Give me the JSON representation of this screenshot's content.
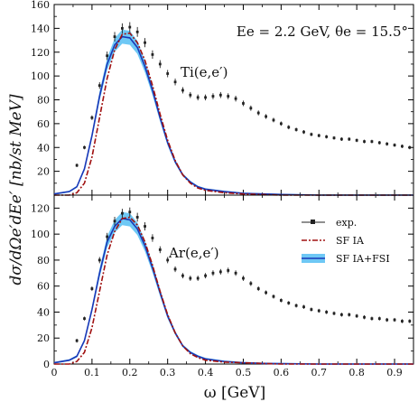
{
  "chart_data": {
    "type": "line",
    "x_label": "ω  [GeV]",
    "y_label": "dσ/dΩe′dEe′  [nb/st MeV]",
    "x_range": [
      0,
      0.95
    ],
    "x_ticks": [
      "0",
      "0.1",
      "0.2",
      "0.3",
      "0.4",
      "0.5",
      "0.6",
      "0.7",
      "0.8",
      "0.9"
    ],
    "kinematics_label": "Ee = 2.2 GeV,  θe = 15.5°",
    "legend": {
      "placement": "right",
      "entries": [
        "exp.",
        "SF IA",
        "SF IA+FSI"
      ]
    },
    "colors": {
      "exp": "#222222",
      "sf_ia": "#a01010",
      "sf_fsi_line": "#1838b8",
      "sf_fsi_band": "#6ec8f5"
    },
    "panels": [
      {
        "label": "Ti(e,e′)",
        "y_range": [
          0,
          160
        ],
        "y_ticks": [
          "0",
          "20",
          "40",
          "60",
          "80",
          "100",
          "120",
          "140",
          "160"
        ],
        "series": [
          {
            "name": "exp.",
            "x": [
              0.06,
              0.08,
              0.1,
              0.12,
              0.14,
              0.16,
              0.18,
              0.2,
              0.22,
              0.24,
              0.26,
              0.28,
              0.3,
              0.32,
              0.34,
              0.36,
              0.38,
              0.4,
              0.42,
              0.44,
              0.46,
              0.48,
              0.5,
              0.52,
              0.54,
              0.56,
              0.58,
              0.6,
              0.62,
              0.64,
              0.66,
              0.68,
              0.7,
              0.72,
              0.74,
              0.76,
              0.78,
              0.8,
              0.82,
              0.84,
              0.86,
              0.88,
              0.9,
              0.92,
              0.94
            ],
            "y": [
              25,
              40,
              65,
              92,
              117,
              133,
              140,
              141,
              137,
              128,
              118,
              110,
              102,
              95,
              88,
              84,
              82,
              82,
              83,
              84,
              83,
              81,
              77,
              73,
              69,
              66,
              63,
              60,
              57,
              55,
              53,
              51,
              50,
              49,
              48,
              47,
              47,
              46,
              45,
              45,
              44,
              43,
              42,
              41,
              40
            ]
          },
          {
            "name": "SF IA",
            "x": [
              0.0,
              0.04,
              0.06,
              0.08,
              0.1,
              0.12,
              0.14,
              0.16,
              0.18,
              0.2,
              0.22,
              0.24,
              0.26,
              0.28,
              0.3,
              0.32,
              0.34,
              0.36,
              0.38,
              0.4,
              0.45,
              0.5,
              0.55,
              0.6,
              0.7,
              0.8,
              0.95
            ],
            "y": [
              0,
              0,
              2,
              10,
              32,
              65,
              98,
              122,
              135,
              136,
              128,
              113,
              92,
              68,
              46,
              29,
              17,
              10,
              6,
              4,
              2,
              1,
              0.5,
              0,
              0,
              0,
              0
            ]
          },
          {
            "name": "SF IA+FSI",
            "x": [
              0.0,
              0.04,
              0.06,
              0.08,
              0.1,
              0.12,
              0.14,
              0.16,
              0.18,
              0.2,
              0.22,
              0.24,
              0.26,
              0.28,
              0.3,
              0.32,
              0.34,
              0.36,
              0.38,
              0.4,
              0.45,
              0.5,
              0.55,
              0.6,
              0.7,
              0.8,
              0.95
            ],
            "y": [
              1,
              3,
              7,
              22,
              50,
              83,
              110,
              126,
              133,
              132,
              124,
              108,
              88,
              65,
              44,
              28,
              17,
              11,
              7,
              5,
              3,
              1.5,
              1,
              0.5,
              0,
              0,
              0
            ]
          }
        ]
      },
      {
        "label": "Ar(e,e′)",
        "y_range": [
          0,
          130
        ],
        "y_ticks": [
          "0",
          "20",
          "40",
          "60",
          "80",
          "100",
          "120"
        ],
        "series": [
          {
            "name": "exp.",
            "x": [
              0.06,
              0.08,
              0.1,
              0.12,
              0.14,
              0.16,
              0.18,
              0.2,
              0.22,
              0.24,
              0.26,
              0.28,
              0.3,
              0.32,
              0.34,
              0.36,
              0.38,
              0.4,
              0.42,
              0.44,
              0.46,
              0.48,
              0.5,
              0.52,
              0.54,
              0.56,
              0.58,
              0.6,
              0.62,
              0.64,
              0.66,
              0.68,
              0.7,
              0.72,
              0.74,
              0.76,
              0.78,
              0.8,
              0.82,
              0.84,
              0.86,
              0.88,
              0.9,
              0.92,
              0.94
            ],
            "y": [
              18,
              35,
              58,
              80,
              98,
              110,
              116,
              117,
              113,
              106,
              97,
              88,
              80,
              73,
              68,
              66,
              66,
              68,
              70,
              71,
              72,
              70,
              66,
              62,
              58,
              55,
              52,
              49,
              47,
              45,
              44,
              42,
              41,
              40,
              39,
              38,
              38,
              37,
              36,
              35,
              35,
              34,
              34,
              33,
              33
            ]
          },
          {
            "name": "SF IA",
            "x": [
              0.0,
              0.04,
              0.06,
              0.08,
              0.1,
              0.12,
              0.14,
              0.16,
              0.18,
              0.2,
              0.22,
              0.24,
              0.26,
              0.28,
              0.3,
              0.32,
              0.34,
              0.36,
              0.38,
              0.4,
              0.45,
              0.5,
              0.55,
              0.6,
              0.7,
              0.8,
              0.95
            ],
            "y": [
              0,
              0,
              2,
              9,
              28,
              56,
              84,
              102,
              112,
              113,
              107,
              94,
              76,
              56,
              38,
              24,
              14,
              8,
              5,
              3,
              1.5,
              1,
              0.5,
              0,
              0,
              0,
              0
            ]
          },
          {
            "name": "SF IA+FSI",
            "x": [
              0.0,
              0.04,
              0.06,
              0.08,
              0.1,
              0.12,
              0.14,
              0.16,
              0.18,
              0.2,
              0.22,
              0.24,
              0.26,
              0.28,
              0.3,
              0.32,
              0.34,
              0.36,
              0.38,
              0.4,
              0.45,
              0.5,
              0.55,
              0.6,
              0.7,
              0.8,
              0.95
            ],
            "y": [
              1,
              3,
              6,
              18,
              42,
              70,
              94,
              106,
              112,
              111,
              104,
              91,
              74,
              55,
              37,
              24,
              14,
              9,
              6,
              4,
              2,
              1,
              0.5,
              0.3,
              0,
              0,
              0
            ]
          }
        ]
      }
    ]
  }
}
